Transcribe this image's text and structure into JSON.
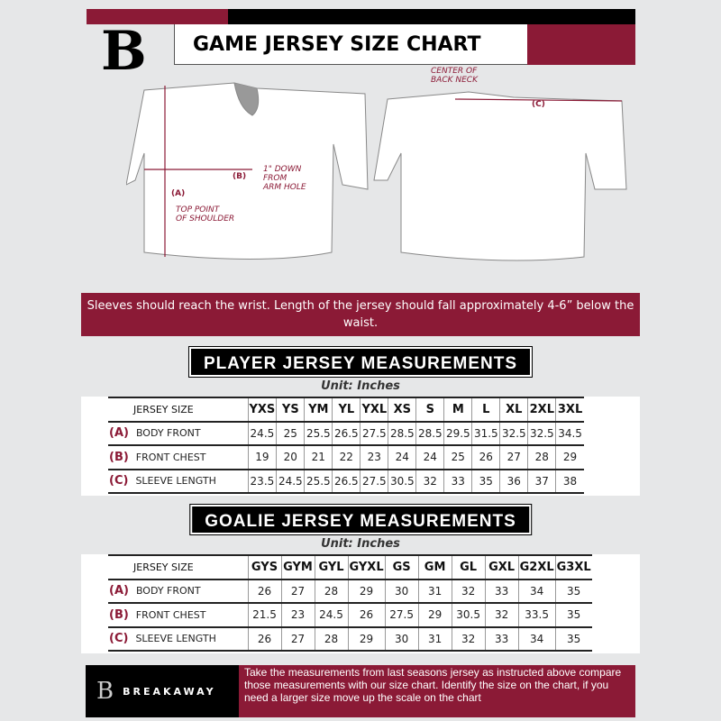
{
  "header": {
    "title": "GAME JERSEY SIZE CHART",
    "logo_letter": "B"
  },
  "diagram": {
    "label_a": "(A)",
    "label_a_note": "TOP POINT\nOF SHOULDER",
    "label_b": "(B)",
    "label_b_note": "1\" DOWN\nFROM\nARM HOLE",
    "label_c": "(C)",
    "label_c_note": "CENTER OF\nBACK NECK"
  },
  "banner": {
    "text": "Sleeves should reach the wrist. Length of the jersey should fall approximately 4-6” below the waist."
  },
  "player": {
    "title": "PLAYER JERSEY MEASUREMENTS",
    "unit": "Unit: Inches",
    "size_label": "JERSEY SIZE",
    "sizes": [
      "YXS",
      "YS",
      "YM",
      "YL",
      "YXL",
      "XS",
      "S",
      "M",
      "L",
      "XL",
      "2XL",
      "3XL"
    ],
    "rows": [
      {
        "code": "(A)",
        "name": "BODY FRONT",
        "values": [
          "24.5",
          "25",
          "25.5",
          "26.5",
          "27.5",
          "28.5",
          "28.5",
          "29.5",
          "31.5",
          "32.5",
          "32.5",
          "34.5"
        ]
      },
      {
        "code": "(B)",
        "name": "FRONT CHEST",
        "values": [
          "19",
          "20",
          "21",
          "22",
          "23",
          "24",
          "24",
          "25",
          "26",
          "27",
          "28",
          "29"
        ]
      },
      {
        "code": "(C)",
        "name": "SLEEVE LENGTH",
        "values": [
          "23.5",
          "24.5",
          "25.5",
          "26.5",
          "27.5",
          "30.5",
          "32",
          "33",
          "35",
          "36",
          "37",
          "38"
        ]
      }
    ]
  },
  "goalie": {
    "title": "GOALIE JERSEY MEASUREMENTS",
    "unit": "Unit: Inches",
    "size_label": "JERSEY SIZE",
    "sizes": [
      "GYS",
      "GYM",
      "GYL",
      "GYXL",
      "GS",
      "GM",
      "GL",
      "GXL",
      "G2XL",
      "G3XL"
    ],
    "rows": [
      {
        "code": "(A)",
        "name": "BODY FRONT",
        "values": [
          "26",
          "27",
          "28",
          "29",
          "30",
          "31",
          "32",
          "33",
          "34",
          "35"
        ]
      },
      {
        "code": "(B)",
        "name": "FRONT CHEST",
        "values": [
          "21.5",
          "23",
          "24.5",
          "26",
          "27.5",
          "29",
          "30.5",
          "32",
          "33.5",
          "35"
        ]
      },
      {
        "code": "(C)",
        "name": "SLEEVE LENGTH",
        "values": [
          "26",
          "27",
          "28",
          "29",
          "30",
          "31",
          "32",
          "33",
          "34",
          "35"
        ]
      }
    ]
  },
  "footer": {
    "brand": "BREAKAWAY",
    "text": "Take the measurements from last seasons jersey as instructed above compare those measurements  with our size chart. Identify the size on the chart, if you need a larger size move up the scale on the chart"
  },
  "colors": {
    "accent": "#8b1a36",
    "background": "#e6e7e8"
  }
}
